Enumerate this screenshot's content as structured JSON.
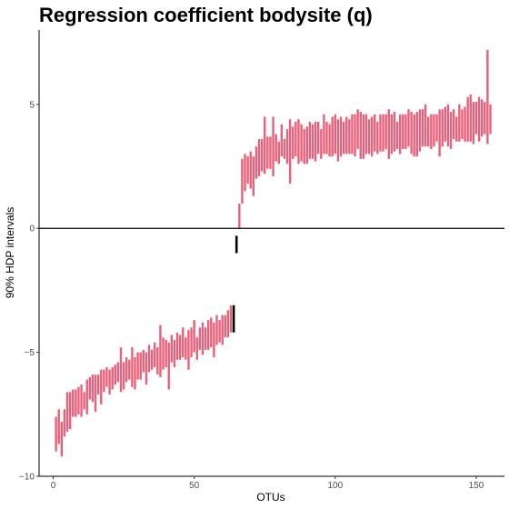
{
  "chart_data": {
    "type": "interval",
    "title": "Regression coefficient bodysite (q)",
    "xlabel": "OTUs",
    "ylabel": "90% HDP intervals",
    "xlim": [
      -5,
      160
    ],
    "ylim": [
      -10,
      8
    ],
    "xticks": [
      0,
      50,
      100,
      150
    ],
    "yticks": [
      -10,
      -5,
      0,
      5
    ],
    "reference_line": 0,
    "grid": false,
    "colors": {
      "nonzero": "#e8607a",
      "zero": "#000000",
      "axis": "#000000"
    },
    "series": [
      {
        "x": [
          1,
          2,
          3,
          4,
          5,
          6,
          7,
          8,
          9,
          10,
          11,
          12,
          13,
          14,
          15,
          16,
          17,
          18,
          19,
          20,
          21,
          22,
          23,
          24,
          25,
          26,
          27,
          28,
          29,
          30,
          31,
          32,
          33,
          34,
          35,
          36,
          37,
          38,
          39,
          40,
          41,
          42,
          43,
          44,
          45,
          46,
          47,
          48,
          49,
          50,
          51,
          52,
          53,
          54,
          55,
          56,
          57,
          58,
          59,
          60,
          61,
          62,
          63,
          64,
          65,
          66,
          67,
          68,
          69,
          70,
          71,
          72,
          73,
          74,
          75,
          76,
          77,
          78,
          79,
          80,
          81,
          82,
          83,
          84,
          85,
          86,
          87,
          88,
          89,
          90,
          91,
          92,
          93,
          94,
          95,
          96,
          97,
          98,
          99,
          100,
          101,
          102,
          103,
          104,
          105,
          106,
          107,
          108,
          109,
          110,
          111,
          112,
          113,
          114,
          115,
          116,
          117,
          118,
          119,
          120,
          121,
          122,
          123,
          124,
          125,
          126,
          127,
          128,
          129,
          130,
          131,
          132,
          133,
          134,
          135,
          136,
          137,
          138,
          139,
          140,
          141,
          142,
          143,
          144,
          145,
          146,
          147,
          148,
          149,
          150,
          151,
          152,
          153,
          154,
          155
        ],
        "low": [
          -9.0,
          -8.7,
          -9.2,
          -8.4,
          -8.2,
          -8.1,
          -7.6,
          -7.6,
          -7.5,
          -7.6,
          -7.3,
          -7.5,
          -6.9,
          -7.0,
          -7.4,
          -6.7,
          -7.1,
          -6.6,
          -6.4,
          -6.7,
          -6.5,
          -6.3,
          -6.2,
          -6.6,
          -6.5,
          -6.2,
          -6.1,
          -6.4,
          -6.5,
          -6.1,
          -6.1,
          -5.8,
          -6.3,
          -5.8,
          -5.7,
          -5.6,
          -5.9,
          -6.0,
          -5.7,
          -5.6,
          -6.5,
          -5.4,
          -5.6,
          -5.3,
          -5.3,
          -5.2,
          -5.3,
          -5.7,
          -5.2,
          -5.0,
          -5.3,
          -4.9,
          -5.1,
          -4.9,
          -4.9,
          -4.8,
          -5.2,
          -4.7,
          -4.6,
          -4.7,
          -4.4,
          -4.4,
          -4.2,
          -4.2,
          -1.0,
          0.0,
          1.0,
          1.5,
          1.8,
          1.6,
          1.3,
          2.0,
          2.1,
          2.3,
          2.2,
          2.4,
          2.4,
          2.1,
          2.7,
          2.6,
          2.9,
          2.8,
          2.6,
          1.8,
          2.8,
          2.9,
          2.6,
          2.7,
          2.6,
          2.6,
          2.8,
          2.8,
          2.7,
          3.0,
          2.8,
          3.0,
          3.0,
          2.9,
          2.9,
          3.0,
          2.7,
          2.9,
          3.0,
          3.0,
          3.0,
          3.0,
          2.9,
          3.2,
          2.8,
          2.8,
          3.0,
          3.0,
          2.9,
          3.1,
          3.0,
          3.1,
          3.1,
          3.2,
          2.8,
          3.0,
          3.1,
          3.2,
          3.0,
          3.2,
          3.2,
          3.3,
          3.0,
          2.9,
          2.9,
          3.1,
          3.3,
          3.3,
          3.3,
          3.2,
          3.3,
          3.5,
          2.9,
          3.3,
          3.5,
          3.3,
          3.2,
          3.6,
          3.5,
          3.5,
          3.6,
          3.5,
          3.5,
          3.5,
          3.4,
          3.8,
          3.5,
          3.7,
          3.8,
          3.4,
          3.8
        ],
        "high": [
          -7.6,
          -7.3,
          -7.8,
          -7.3,
          -6.6,
          -6.6,
          -6.5,
          -6.5,
          -6.4,
          -6.3,
          -6.6,
          -6.1,
          -6.0,
          -5.9,
          -5.9,
          -5.9,
          -5.7,
          -5.7,
          -5.6,
          -5.7,
          -5.6,
          -5.5,
          -5.4,
          -4.8,
          -5.4,
          -5.2,
          -5.3,
          -4.8,
          -5.2,
          -5.0,
          -5.0,
          -4.9,
          -5.0,
          -4.7,
          -4.9,
          -4.6,
          -4.8,
          -3.9,
          -4.4,
          -4.5,
          -4.6,
          -4.3,
          -4.5,
          -4.2,
          -4.3,
          -4.0,
          -4.4,
          -4.1,
          -4.0,
          -3.7,
          -4.4,
          -4.0,
          -3.8,
          -4.0,
          -3.7,
          -3.6,
          -3.8,
          -3.5,
          -3.7,
          -3.5,
          -3.5,
          -3.3,
          -3.1,
          -3.1,
          -0.3,
          1.0,
          2.8,
          3.0,
          2.9,
          3.1,
          2.9,
          3.3,
          3.6,
          3.6,
          4.5,
          3.7,
          3.7,
          4.5,
          3.8,
          3.5,
          4.2,
          3.6,
          4.0,
          4.4,
          4.1,
          4.3,
          4.4,
          4.2,
          4.0,
          4.1,
          4.3,
          4.2,
          4.3,
          4.3,
          4.0,
          4.6,
          4.3,
          4.2,
          4.5,
          4.6,
          4.4,
          4.5,
          4.3,
          4.5,
          4.4,
          4.6,
          4.6,
          4.8,
          4.7,
          4.6,
          4.6,
          4.4,
          4.5,
          4.6,
          4.3,
          4.6,
          4.6,
          4.6,
          4.8,
          4.6,
          4.7,
          4.3,
          4.6,
          4.6,
          4.6,
          4.8,
          4.7,
          4.6,
          4.7,
          4.8,
          4.8,
          5.0,
          4.5,
          4.6,
          4.6,
          4.6,
          4.8,
          4.8,
          4.9,
          5.0,
          4.7,
          4.8,
          4.5,
          5.0,
          4.8,
          4.9,
          5.3,
          5.4,
          5.1,
          5.1,
          5.3,
          5.2,
          5.1,
          7.2,
          5.0
        ],
        "zero_crossing_x": [
          64,
          65
        ]
      }
    ]
  }
}
